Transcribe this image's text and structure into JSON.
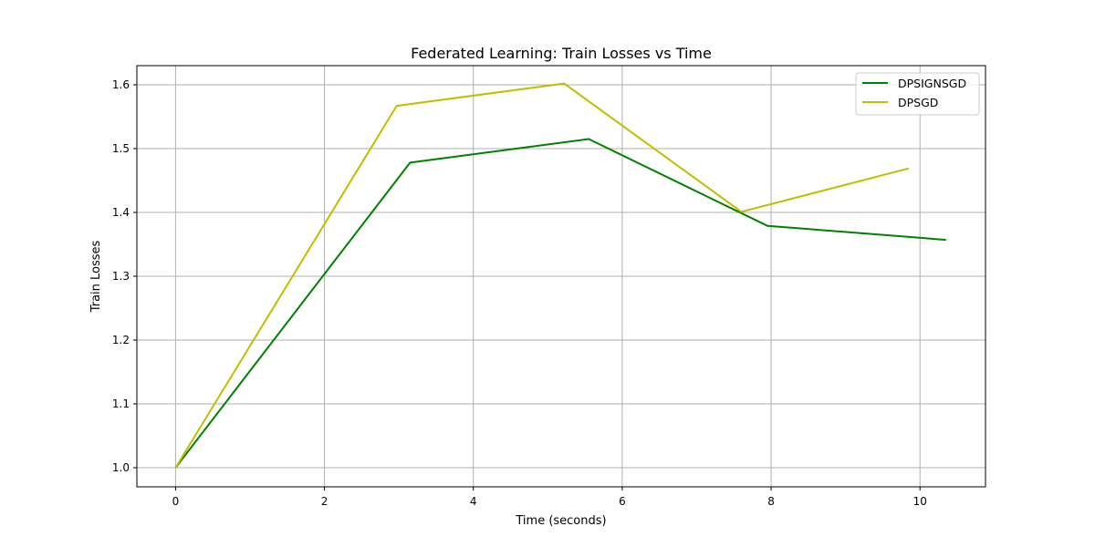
{
  "chart_data": {
    "type": "line",
    "title": "Federated Learning: Train Losses vs Time",
    "xlabel": "Time (seconds)",
    "ylabel": "Train Losses",
    "xlim": [
      -0.52,
      10.88
    ],
    "ylim": [
      0.97,
      1.63
    ],
    "xticks": [
      0,
      2,
      4,
      6,
      8,
      10
    ],
    "yticks": [
      1.0,
      1.1,
      1.2,
      1.3,
      1.4,
      1.5,
      1.6
    ],
    "ytick_labels": [
      "1.0",
      "1.1",
      "1.2",
      "1.3",
      "1.4",
      "1.5",
      "1.6"
    ],
    "grid": true,
    "legend_position": "top-right",
    "series": [
      {
        "name": "DPSIGNSGD",
        "color": "#008000",
        "x": [
          0,
          3.15,
          5.55,
          7.95,
          10.35
        ],
        "y": [
          1.0,
          1.478,
          1.515,
          1.379,
          1.357
        ]
      },
      {
        "name": "DPSGD",
        "color": "#bfbf00",
        "x": [
          0,
          2.97,
          5.22,
          7.6,
          9.85
        ],
        "y": [
          1.0,
          1.567,
          1.602,
          1.401,
          1.469
        ]
      }
    ]
  }
}
